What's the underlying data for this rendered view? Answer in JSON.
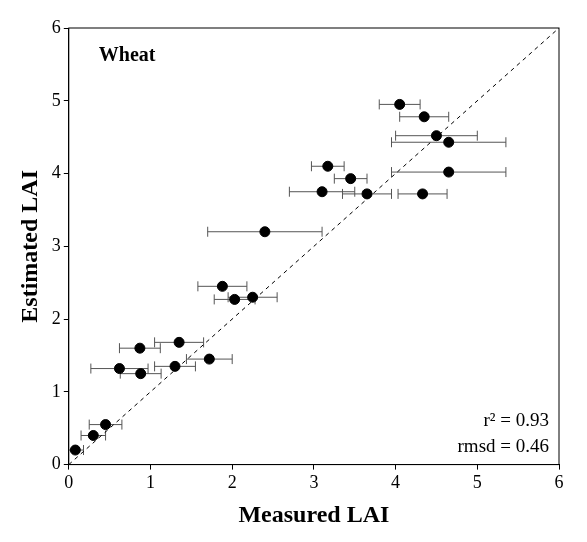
{
  "chart_data": {
    "type": "scatter",
    "x_label": "Measured LAI",
    "y_label": "Estimated LAI",
    "annotations": [
      "Wheat",
      "r² = 0.93",
      "rmsd = 0.46"
    ],
    "xlim": [
      0,
      6
    ],
    "ylim": [
      0,
      6
    ],
    "xticks": [
      0,
      1,
      2,
      3,
      4,
      5,
      6
    ],
    "yticks": [
      0,
      1,
      2,
      3,
      4,
      5,
      6
    ],
    "grid": false,
    "series": [
      {
        "type": "scatter",
        "color": "#000000",
        "marker": "circle",
        "x": [
          0.08,
          0.3,
          0.45,
          0.62,
          0.87,
          0.88,
          1.35,
          1.3,
          1.72,
          1.88,
          2.03,
          2.25,
          2.4,
          3.1,
          3.17,
          3.45,
          3.65,
          4.05,
          4.35,
          4.5,
          4.65,
          4.65,
          4.33
        ],
        "values": [
          0.2,
          0.4,
          0.55,
          1.32,
          1.6,
          1.25,
          1.68,
          1.35,
          1.45,
          2.45,
          2.27,
          2.3,
          3.2,
          3.75,
          4.1,
          3.93,
          3.72,
          4.95,
          4.78,
          4.52,
          4.43,
          4.02,
          3.72
        ],
        "x_error": [
          0.1,
          0.15,
          0.2,
          0.35,
          0.25,
          0.25,
          0.3,
          0.25,
          0.28,
          0.3,
          0.25,
          0.3,
          0.7,
          0.4,
          0.2,
          0.2,
          0.3,
          0.25,
          0.3,
          0.5,
          0.7,
          0.7,
          0.3
        ]
      },
      {
        "type": "line",
        "color": "#000000",
        "line_style": "dashed",
        "x": [
          0,
          6
        ],
        "values": [
          0,
          6
        ]
      }
    ]
  }
}
